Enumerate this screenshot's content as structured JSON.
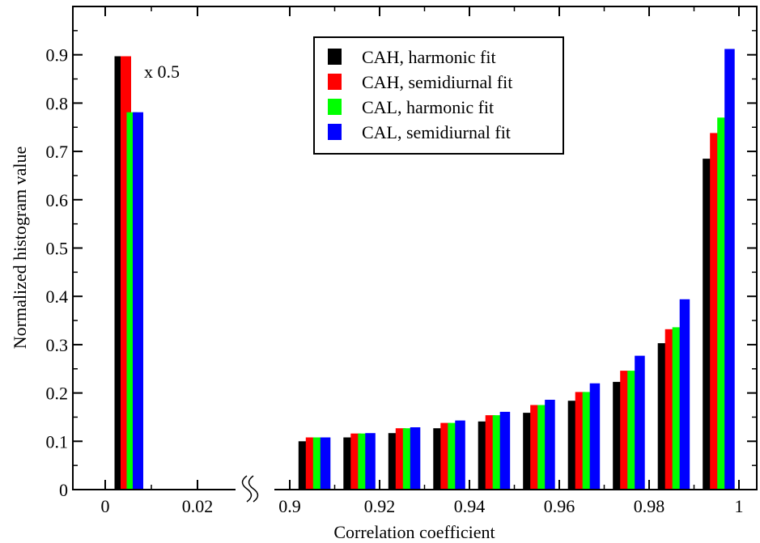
{
  "chart_data": {
    "type": "bar",
    "xlabel": "Correlation coefficient",
    "ylabel": "Normalized histogram value",
    "ylim": [
      0,
      1.0
    ],
    "y_ticks": [
      "0",
      "0.1",
      "0.2",
      "0.3",
      "0.4",
      "0.5",
      "0.6",
      "0.7",
      "0.8",
      "0.9"
    ],
    "x_tick_labels": [
      "0",
      "0.02",
      "0.9",
      "0.92",
      "0.94",
      "0.96",
      "0.98",
      "1"
    ],
    "axis_break_between": [
      "0.02",
      "0.9"
    ],
    "annotation": "x 0.5",
    "legend_position": "top-center",
    "series": [
      {
        "name": "CAH, harmonic fit",
        "color": "#000000",
        "points": [
          {
            "x": 0.005,
            "y": 0.897
          },
          {
            "x": 0.905,
            "y": 0.1
          },
          {
            "x": 0.915,
            "y": 0.108
          },
          {
            "x": 0.925,
            "y": 0.117
          },
          {
            "x": 0.935,
            "y": 0.127
          },
          {
            "x": 0.945,
            "y": 0.141
          },
          {
            "x": 0.955,
            "y": 0.159
          },
          {
            "x": 0.965,
            "y": 0.184
          },
          {
            "x": 0.975,
            "y": 0.223
          },
          {
            "x": 0.985,
            "y": 0.303
          },
          {
            "x": 0.995,
            "y": 0.685
          }
        ]
      },
      {
        "name": "CAH, semidiurnal fit",
        "color": "#ff0000",
        "points": [
          {
            "x": 0.005,
            "y": 0.897
          },
          {
            "x": 0.905,
            "y": 0.108
          },
          {
            "x": 0.915,
            "y": 0.116
          },
          {
            "x": 0.925,
            "y": 0.127
          },
          {
            "x": 0.935,
            "y": 0.138
          },
          {
            "x": 0.945,
            "y": 0.154
          },
          {
            "x": 0.955,
            "y": 0.175
          },
          {
            "x": 0.965,
            "y": 0.202
          },
          {
            "x": 0.975,
            "y": 0.246
          },
          {
            "x": 0.985,
            "y": 0.332
          },
          {
            "x": 0.995,
            "y": 0.738
          }
        ]
      },
      {
        "name": "CAL, harmonic fit",
        "color": "#00ff00",
        "points": [
          {
            "x": 0.005,
            "y": 0.781
          },
          {
            "x": 0.905,
            "y": 0.108
          },
          {
            "x": 0.915,
            "y": 0.116
          },
          {
            "x": 0.925,
            "y": 0.127
          },
          {
            "x": 0.935,
            "y": 0.138
          },
          {
            "x": 0.945,
            "y": 0.154
          },
          {
            "x": 0.955,
            "y": 0.175
          },
          {
            "x": 0.965,
            "y": 0.202
          },
          {
            "x": 0.975,
            "y": 0.246
          },
          {
            "x": 0.985,
            "y": 0.336
          },
          {
            "x": 0.995,
            "y": 0.77
          }
        ]
      },
      {
        "name": "CAL, semidiurnal fit",
        "color": "#0000ff",
        "points": [
          {
            "x": 0.005,
            "y": 0.781
          },
          {
            "x": 0.905,
            "y": 0.108
          },
          {
            "x": 0.915,
            "y": 0.117
          },
          {
            "x": 0.925,
            "y": 0.129
          },
          {
            "x": 0.935,
            "y": 0.143
          },
          {
            "x": 0.945,
            "y": 0.161
          },
          {
            "x": 0.955,
            "y": 0.186
          },
          {
            "x": 0.965,
            "y": 0.22
          },
          {
            "x": 0.975,
            "y": 0.277
          },
          {
            "x": 0.985,
            "y": 0.394
          },
          {
            "x": 0.995,
            "y": 0.912
          }
        ]
      }
    ]
  }
}
